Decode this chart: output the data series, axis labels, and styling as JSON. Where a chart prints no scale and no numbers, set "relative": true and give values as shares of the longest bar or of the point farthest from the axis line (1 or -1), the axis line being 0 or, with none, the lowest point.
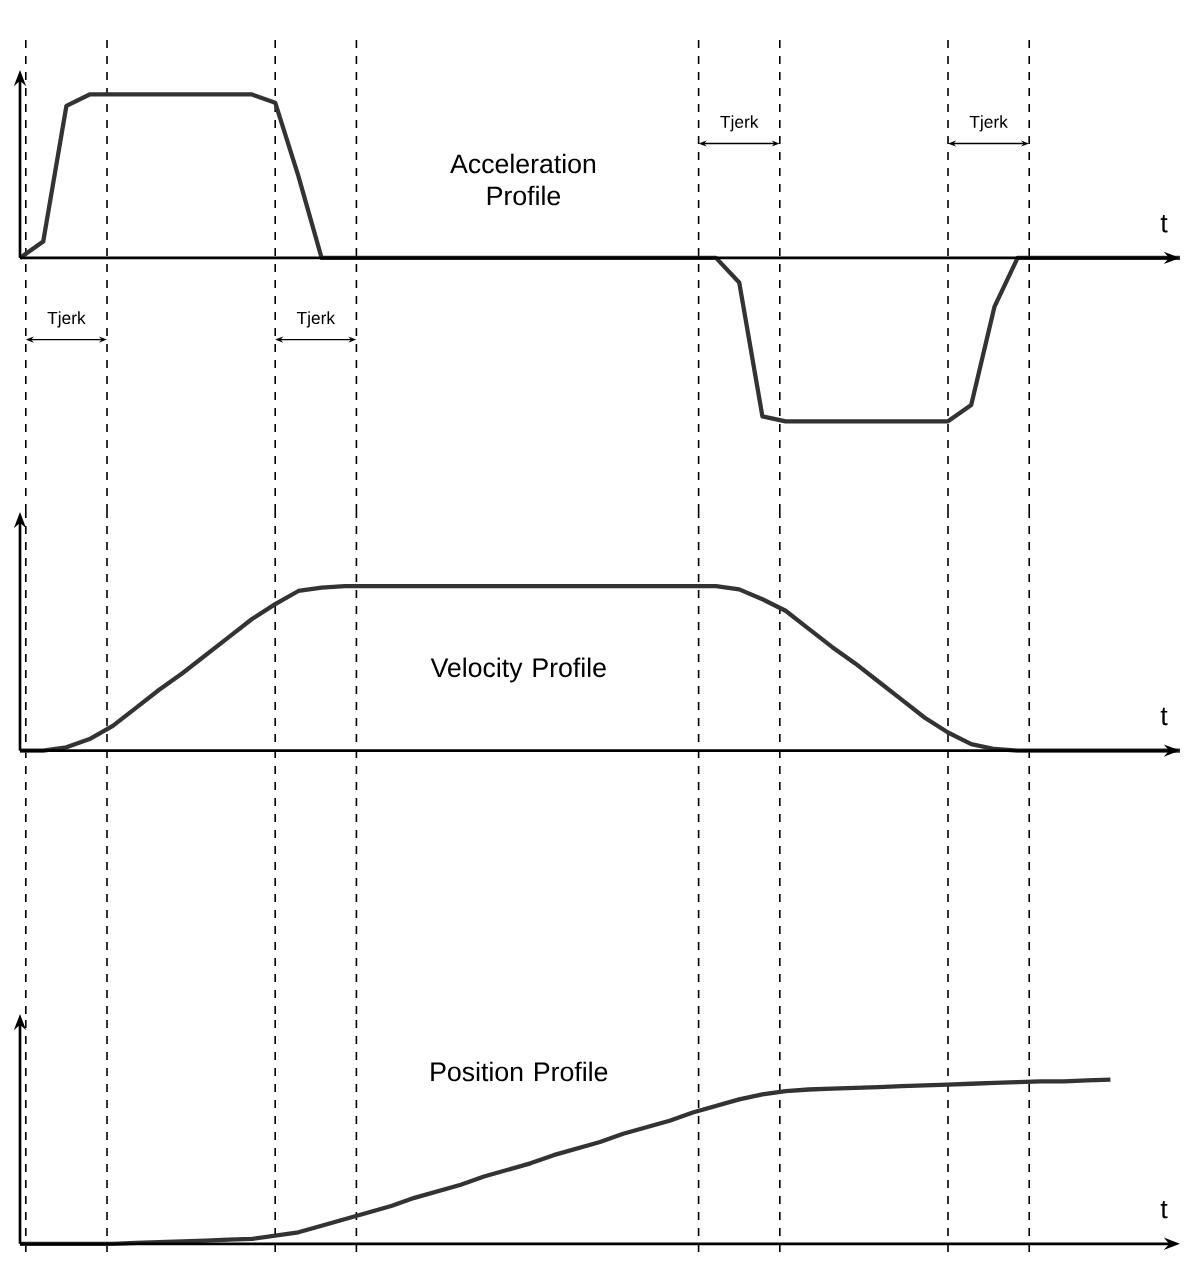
{
  "chart_data": [
    {
      "type": "line",
      "title": "Acceleration Profile",
      "xlabel": "t",
      "relative": true,
      "categories": [
        null,
        null,
        null,
        null,
        null,
        null,
        null,
        null,
        null,
        null,
        null,
        null,
        null,
        null,
        null,
        null,
        null,
        null,
        null,
        null,
        null,
        null,
        null,
        null,
        null,
        null,
        null,
        null,
        null,
        null,
        null,
        null,
        null,
        null,
        null,
        null,
        null,
        null,
        null,
        null,
        null,
        null,
        null,
        null,
        null,
        null,
        null,
        null,
        null,
        null,
        null
      ],
      "series": [
        {
          "color": "#333333",
          "values": [
            0,
            0.1,
            0.93,
            1,
            1,
            1,
            1,
            1,
            1,
            1,
            1,
            0.95,
            0.5,
            0,
            0,
            0,
            0,
            0,
            0,
            0,
            0,
            0,
            0,
            0,
            0,
            0,
            0,
            0,
            0,
            0,
            0,
            -0.15,
            -0.97,
            -1,
            -1,
            -1,
            -1,
            -1,
            -1,
            -1,
            -1,
            -0.9,
            -0.3,
            0,
            0,
            0,
            0,
            0,
            0,
            0,
            0
          ]
        }
      ],
      "annotations": [
        "Tjerk",
        "Tjerk",
        "Tjerk",
        "Tjerk"
      ]
    },
    {
      "type": "line",
      "title": "Velocity Profile",
      "xlabel": "t",
      "relative": true,
      "categories": [
        null,
        null,
        null,
        null,
        null,
        null,
        null,
        null,
        null,
        null,
        null,
        null,
        null,
        null,
        null,
        null,
        null,
        null,
        null,
        null,
        null,
        null,
        null,
        null,
        null,
        null,
        null,
        null,
        null,
        null,
        null,
        null,
        null,
        null,
        null,
        null,
        null,
        null,
        null,
        null,
        null,
        null,
        null,
        null,
        null,
        null,
        null,
        null,
        null,
        null,
        null
      ],
      "series": [
        {
          "color": "#333333",
          "values": [
            0,
            0,
            0.02,
            0.07,
            0.15,
            0.26,
            0.37,
            0.47,
            0.58,
            0.69,
            0.8,
            0.89,
            0.97,
            0.99,
            1,
            1,
            1,
            1,
            1,
            1,
            1,
            1,
            1,
            1,
            1,
            1,
            1,
            1,
            1,
            1,
            1,
            0.98,
            0.92,
            0.85,
            0.74,
            0.63,
            0.53,
            0.42,
            0.31,
            0.2,
            0.11,
            0.04,
            0.01,
            0,
            0,
            0,
            0,
            0,
            0,
            0,
            0
          ]
        }
      ]
    },
    {
      "type": "line",
      "title": "Position Profile",
      "xlabel": "t",
      "relative": true,
      "categories": [
        null,
        null,
        null,
        null,
        null,
        null,
        null,
        null,
        null,
        null,
        null,
        null,
        null,
        null,
        null,
        null,
        null,
        null,
        null,
        null,
        null,
        null,
        null,
        null,
        null,
        null,
        null,
        null,
        null,
        null,
        null,
        null,
        null,
        null,
        null,
        null,
        null,
        null,
        null,
        null,
        null,
        null,
        null,
        null,
        null,
        null,
        null,
        null,
        null,
        null,
        null
      ],
      "series": [
        {
          "color": "#333333",
          "values": [
            0,
            0,
            0,
            0,
            0,
            0.005,
            0.01,
            0.015,
            0.02,
            0.025,
            0.03,
            0.05,
            0.07,
            0.11,
            0.15,
            0.19,
            0.23,
            0.28,
            0.32,
            0.36,
            0.41,
            0.45,
            0.49,
            0.54,
            0.58,
            0.62,
            0.67,
            0.71,
            0.75,
            0.8,
            0.84,
            0.88,
            0.91,
            0.93,
            0.94,
            0.945,
            0.95,
            0.955,
            0.96,
            0.965,
            0.97,
            0.975,
            0.98,
            0.985,
            0.99,
            0.99,
            0.995,
            1,
            null,
            null,
            null
          ]
        }
      ]
    }
  ]
}
